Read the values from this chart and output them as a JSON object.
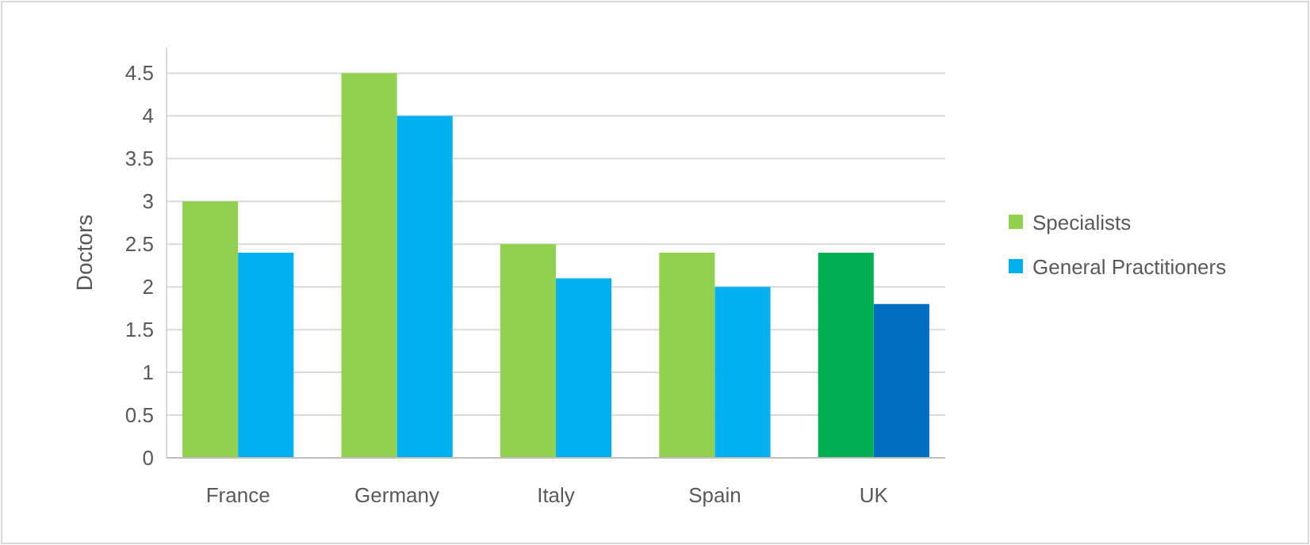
{
  "chart_data": {
    "type": "bar",
    "ylabel": "Doctors",
    "categories": [
      "France",
      "Germany",
      "Italy",
      "Spain",
      "UK"
    ],
    "series": [
      {
        "name": "Specialists",
        "color": "#92d050",
        "colors": [
          "#92d050",
          "#92d050",
          "#92d050",
          "#92d050",
          "#00b050"
        ],
        "values": [
          3.0,
          4.5,
          2.5,
          2.4,
          2.4
        ]
      },
      {
        "name": "General Practitioners",
        "color": "#00b0f0",
        "colors": [
          "#00b0f0",
          "#00b0f0",
          "#00b0f0",
          "#00b0f0",
          "#0070c0"
        ],
        "values": [
          2.4,
          4.0,
          2.1,
          2.0,
          1.8
        ]
      }
    ],
    "ylim": [
      0,
      4.8
    ],
    "yticks": [
      0,
      0.5,
      1,
      1.5,
      2,
      2.5,
      3,
      3.5,
      4,
      4.5
    ],
    "grid": "y",
    "legend": "right"
  }
}
